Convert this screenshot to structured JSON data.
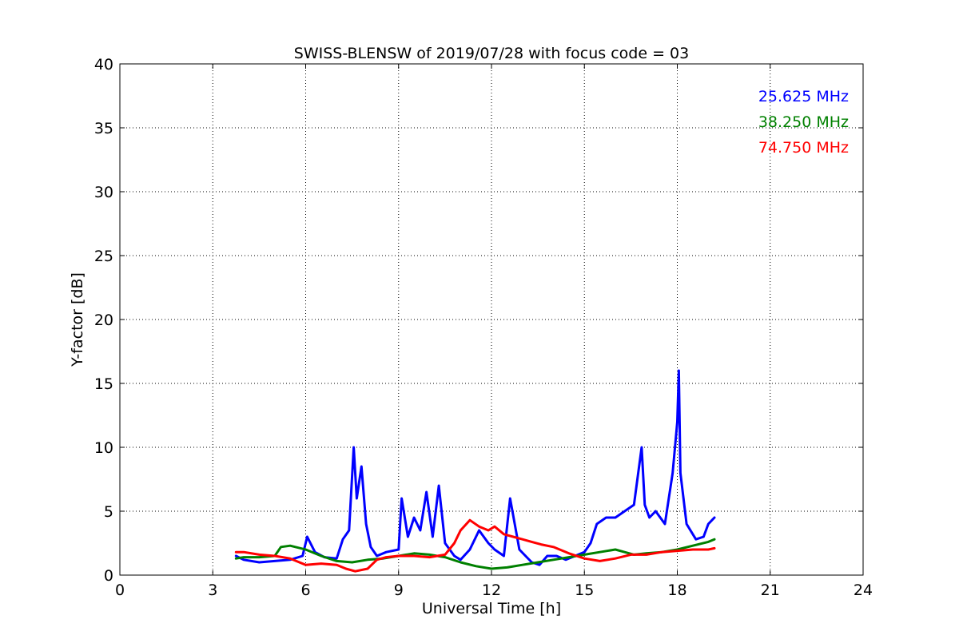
{
  "chart_data": {
    "type": "line",
    "title": "SWISS-BLENSW of 2019/07/28 with focus code = 03",
    "xlabel": "Universal Time [h]",
    "ylabel": "Y-factor [dB]",
    "xlim": [
      0,
      24
    ],
    "ylim": [
      0,
      40
    ],
    "xticks": [
      0,
      3,
      6,
      9,
      12,
      15,
      18,
      21,
      24
    ],
    "yticks": [
      0,
      5,
      10,
      15,
      20,
      25,
      30,
      35,
      40
    ],
    "grid": true,
    "legend_position": "top-right",
    "series": [
      {
        "name": "25.625 MHz",
        "color": "#0000ff",
        "x": [
          3.75,
          4.0,
          4.5,
          5.0,
          5.5,
          5.9,
          6.05,
          6.3,
          6.6,
          7.0,
          7.2,
          7.4,
          7.55,
          7.65,
          7.8,
          7.95,
          8.1,
          8.3,
          8.6,
          9.0,
          9.1,
          9.3,
          9.5,
          9.7,
          9.9,
          10.1,
          10.3,
          10.5,
          10.8,
          11.0,
          11.3,
          11.6,
          11.9,
          12.1,
          12.4,
          12.6,
          12.75,
          12.9,
          13.1,
          13.3,
          13.55,
          13.8,
          14.1,
          14.4,
          14.7,
          15.0,
          15.2,
          15.4,
          15.7,
          16.0,
          16.3,
          16.6,
          16.85,
          16.95,
          17.1,
          17.3,
          17.6,
          17.85,
          18.0,
          18.05,
          18.1,
          18.3,
          18.6,
          18.85,
          19.0,
          19.2
        ],
        "y": [
          1.5,
          1.2,
          1.0,
          1.1,
          1.2,
          1.5,
          3.0,
          1.8,
          1.4,
          1.3,
          2.8,
          3.5,
          10.0,
          6.0,
          8.5,
          4.0,
          2.2,
          1.5,
          1.8,
          2.0,
          6.0,
          3.0,
          4.5,
          3.5,
          6.5,
          3.0,
          7.0,
          2.5,
          1.5,
          1.2,
          2.0,
          3.5,
          2.5,
          2.0,
          1.5,
          6.0,
          4.0,
          2.0,
          1.5,
          1.0,
          0.8,
          1.5,
          1.5,
          1.2,
          1.5,
          1.8,
          2.5,
          4.0,
          4.5,
          4.5,
          5.0,
          5.5,
          10.0,
          5.5,
          4.5,
          5.0,
          4.0,
          8.0,
          12.0,
          16.0,
          8.0,
          4.0,
          2.8,
          3.0,
          4.0,
          4.5
        ]
      },
      {
        "name": "38.250 MHz",
        "color": "#008000",
        "x": [
          3.75,
          4.0,
          4.5,
          5.0,
          5.2,
          5.5,
          6.0,
          6.5,
          7.0,
          7.5,
          8.0,
          8.5,
          9.0,
          9.5,
          10.0,
          10.5,
          11.0,
          11.5,
          12.0,
          12.5,
          13.0,
          13.5,
          14.0,
          14.5,
          15.0,
          15.5,
          16.0,
          16.3,
          16.6,
          17.0,
          17.5,
          18.0,
          18.5,
          19.0,
          19.2
        ],
        "y": [
          1.3,
          1.4,
          1.4,
          1.5,
          2.2,
          2.3,
          2.0,
          1.5,
          1.1,
          1.0,
          1.2,
          1.3,
          1.5,
          1.7,
          1.6,
          1.4,
          1.0,
          0.7,
          0.5,
          0.6,
          0.8,
          1.0,
          1.2,
          1.4,
          1.6,
          1.8,
          2.0,
          1.8,
          1.6,
          1.7,
          1.8,
          2.0,
          2.3,
          2.6,
          2.8
        ]
      },
      {
        "name": "74.750 MHz",
        "color": "#ff0000",
        "x": [
          3.75,
          4.0,
          4.5,
          5.0,
          5.5,
          6.0,
          6.5,
          7.0,
          7.3,
          7.6,
          8.0,
          8.3,
          8.6,
          9.0,
          9.5,
          10.0,
          10.5,
          10.8,
          11.0,
          11.3,
          11.6,
          11.9,
          12.1,
          12.4,
          12.7,
          13.0,
          13.3,
          13.6,
          14.0,
          14.5,
          15.0,
          15.5,
          16.0,
          16.5,
          17.0,
          17.5,
          18.0,
          18.5,
          19.0,
          19.2
        ],
        "y": [
          1.8,
          1.8,
          1.6,
          1.5,
          1.3,
          0.8,
          0.9,
          0.8,
          0.5,
          0.3,
          0.5,
          1.2,
          1.4,
          1.5,
          1.5,
          1.4,
          1.6,
          2.5,
          3.5,
          4.3,
          3.8,
          3.5,
          3.8,
          3.2,
          3.0,
          2.8,
          2.6,
          2.4,
          2.2,
          1.7,
          1.3,
          1.1,
          1.3,
          1.6,
          1.6,
          1.8,
          1.9,
          2.0,
          2.0,
          2.1
        ]
      }
    ]
  }
}
